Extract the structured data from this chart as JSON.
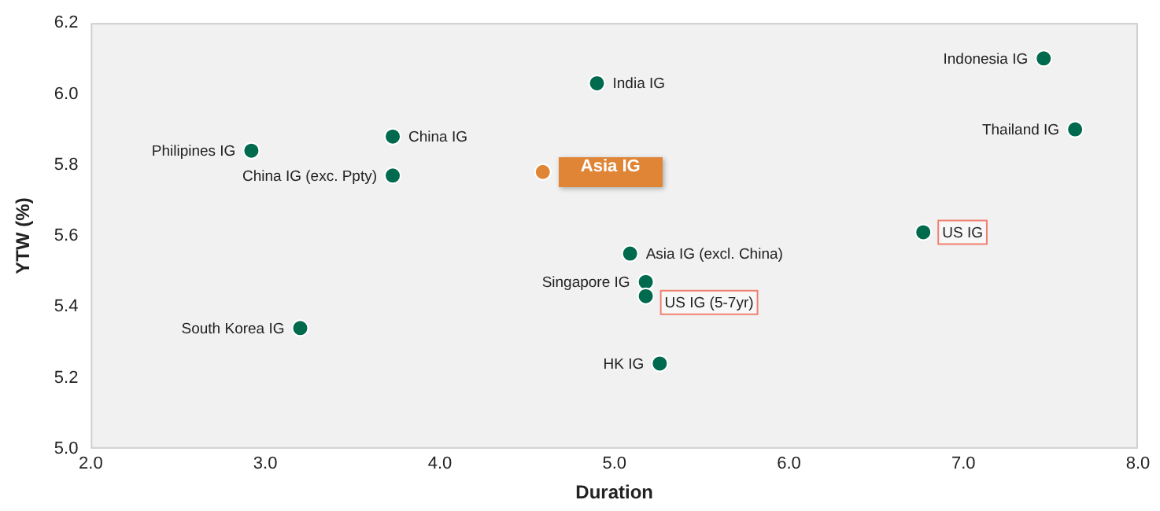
{
  "chart_data": {
    "type": "scatter",
    "xlabel": "Duration",
    "ylabel": "YTW (%)",
    "xlim": [
      2.0,
      8.0
    ],
    "xticks": [
      {
        "value": 2,
        "label": "2.0"
      },
      {
        "value": 3,
        "label": "3.0"
      },
      {
        "value": 4,
        "label": "4.0"
      },
      {
        "value": 5,
        "label": "5.0"
      },
      {
        "value": 6,
        "label": "6.0"
      },
      {
        "value": 7,
        "label": "7.0"
      },
      {
        "value": 8,
        "label": "8.0"
      }
    ],
    "ylim": [
      5.0,
      6.2
    ],
    "yticks": [
      {
        "value": 5,
        "label": "5.0"
      },
      5.2,
      5.4,
      5.6,
      5.8,
      {
        "value": 6,
        "label": "6.0"
      },
      6.2
    ],
    "grid": false,
    "legend": false,
    "marker": "circle",
    "series": [
      {
        "color": "#006a4e",
        "x": [
          2.92,
          3.73,
          3.73,
          3.2,
          4.9,
          7.46,
          7.64,
          6.77,
          5.09,
          5.18,
          5.18,
          5.26
        ],
        "values": [
          5.84,
          5.88,
          5.77,
          5.34,
          6.03,
          6.1,
          5.9,
          5.61,
          5.55,
          5.47,
          5.43,
          5.24
        ]
      },
      {
        "color": "#e08536",
        "x": [
          4.59
        ],
        "values": [
          5.78
        ]
      }
    ],
    "annotations": [
      {
        "text": "Philipines IG",
        "x": 2.92,
        "y": 5.84
      },
      {
        "text": "China IG",
        "x": 3.73,
        "y": 5.88
      },
      {
        "text": "China IG (exc. Ppty)",
        "x": 3.73,
        "y": 5.77
      },
      {
        "text": "South Korea IG",
        "x": 3.2,
        "y": 5.34
      },
      {
        "text": "India IG",
        "x": 4.9,
        "y": 6.03
      },
      {
        "text": "Indonesia IG",
        "x": 7.46,
        "y": 6.1
      },
      {
        "text": "Thailand IG",
        "x": 7.64,
        "y": 5.9
      },
      {
        "text": "US IG",
        "x": 6.77,
        "y": 5.61
      },
      {
        "text": "Asia IG (excl. China)",
        "x": 5.09,
        "y": 5.55
      },
      {
        "text": "Singapore IG",
        "x": 5.18,
        "y": 5.47
      },
      {
        "text": "US IG (5-7yr)",
        "x": 5.18,
        "y": 5.43
      },
      {
        "text": "HK IG",
        "x": 5.26,
        "y": 5.24
      },
      {
        "text": "Asia IG",
        "x": 4.59,
        "y": 5.78
      }
    ]
  }
}
